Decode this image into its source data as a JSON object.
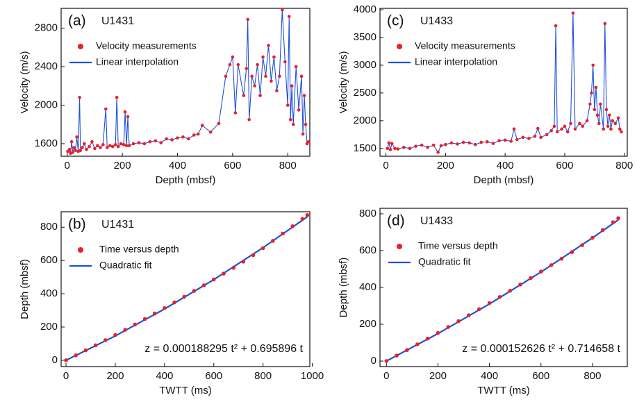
{
  "chart_data": [
    {
      "type": "scatter",
      "panel_label": "(a)",
      "title": "U1431",
      "x_label": "Depth (mbsf)",
      "y_label": "Velocity (m/s)",
      "xlim": [
        -22,
        880
      ],
      "ylim": [
        1470,
        3005
      ],
      "xticks": [
        0,
        200,
        400,
        600,
        800
      ],
      "yticks": [
        1600,
        2000,
        2400,
        2800
      ],
      "series": [
        {
          "name": "Velocity measurements",
          "color": "#e8202a",
          "x": [
            2,
            8,
            12,
            16,
            20,
            25,
            30,
            35,
            40,
            45,
            48,
            55,
            62,
            70,
            80,
            90,
            100,
            110,
            120,
            130,
            140,
            145,
            155,
            165,
            175,
            180,
            185,
            195,
            205,
            210,
            215,
            220,
            225,
            240,
            260,
            280,
            300,
            320,
            340,
            360,
            380,
            400,
            420,
            440,
            460,
            475,
            490,
            520,
            550,
            575,
            590,
            600,
            610,
            620,
            640,
            650,
            655,
            660,
            670,
            680,
            690,
            700,
            710,
            720,
            730,
            740,
            750,
            760,
            770,
            780,
            790,
            800,
            805,
            810,
            815,
            820,
            830,
            840,
            850,
            855,
            860,
            865,
            870,
            875
          ],
          "values": [
            1520,
            1540,
            1500,
            1620,
            1510,
            1560,
            1530,
            1670,
            1520,
            2080,
            1530,
            1560,
            1600,
            1540,
            1570,
            1620,
            1550,
            1580,
            1560,
            1590,
            1960,
            1560,
            1580,
            1570,
            1590,
            2080,
            1570,
            1600,
            1590,
            1930,
            1580,
            1880,
            1580,
            1600,
            1610,
            1600,
            1620,
            1630,
            1610,
            1650,
            1640,
            1660,
            1670,
            1650,
            1690,
            1700,
            1790,
            1720,
            1810,
            2300,
            2420,
            2500,
            1920,
            2420,
            2100,
            2380,
            2890,
            1850,
            2300,
            2200,
            2420,
            2100,
            2500,
            2300,
            2620,
            2250,
            2500,
            2150,
            2300,
            2990,
            2450,
            2000,
            2920,
            1850,
            2200,
            1800,
            2400,
            1950,
            2300,
            1700,
            2100,
            1800,
            1600,
            1620
          ]
        },
        {
          "name": "Linear interpolation",
          "color": "#1f4fd8"
        }
      ]
    },
    {
      "type": "scatter",
      "panel_label": "(b)",
      "title": "U1431",
      "x_label": "TWTT (ms)",
      "y_label": "Depth (mbsf)",
      "xlim": [
        -20,
        990
      ],
      "ylim": [
        -38,
        893
      ],
      "xticks": [
        0,
        200,
        400,
        600,
        800,
        1000
      ],
      "yticks": [
        0,
        200,
        400,
        600,
        800
      ],
      "equation": "z = 0.000188295 t² + 0.695896 t",
      "series": [
        {
          "name": "Time versus depth",
          "color": "#e8202a",
          "x": [
            0,
            40,
            80,
            120,
            160,
            200,
            240,
            280,
            320,
            360,
            400,
            440,
            480,
            520,
            560,
            600,
            640,
            680,
            720,
            760,
            800,
            840,
            880,
            920,
            960,
            980
          ],
          "values": [
            0,
            30,
            60,
            90,
            121,
            152,
            183,
            215,
            248,
            281,
            314,
            348,
            382,
            417,
            451,
            486,
            521,
            556,
            593,
            632,
            674,
            718,
            762,
            806,
            850,
            873
          ]
        },
        {
          "name": "Quadratic fit",
          "color": "#1f4fd8",
          "x": [
            0,
            200,
            400,
            600,
            800,
            980
          ],
          "values": [
            0,
            146.7,
            308.5,
            485.3,
            677.2,
            862.8
          ]
        }
      ]
    },
    {
      "type": "scatter",
      "panel_label": "(c)",
      "title": "U1433",
      "x_label": "Depth (mbsf)",
      "y_label": "Velocity (m/s)",
      "xlim": [
        -20,
        810
      ],
      "ylim": [
        1360,
        4025
      ],
      "xticks": [
        0,
        200,
        400,
        600,
        800
      ],
      "yticks": [
        1500,
        2000,
        2500,
        3000,
        3500,
        4000
      ],
      "series": [
        {
          "name": "Velocity measurements",
          "color": "#e8202a",
          "x": [
            5,
            10,
            15,
            20,
            30,
            40,
            60,
            80,
            100,
            120,
            140,
            160,
            175,
            185,
            200,
            220,
            240,
            260,
            280,
            300,
            320,
            340,
            360,
            380,
            400,
            420,
            430,
            440,
            460,
            480,
            500,
            510,
            520,
            540,
            555,
            565,
            570,
            575,
            590,
            600,
            610,
            620,
            628,
            635,
            650,
            660,
            675,
            685,
            690,
            695,
            700,
            705,
            710,
            715,
            720,
            730,
            735,
            740,
            745,
            750,
            755,
            760,
            770,
            780,
            785,
            790
          ],
          "values": [
            1500,
            1600,
            1480,
            1590,
            1500,
            1490,
            1520,
            1500,
            1540,
            1560,
            1520,
            1560,
            1430,
            1550,
            1570,
            1600,
            1580,
            1610,
            1600,
            1570,
            1610,
            1620,
            1590,
            1640,
            1650,
            1630,
            1850,
            1660,
            1700,
            1680,
            1720,
            1860,
            1700,
            1750,
            1820,
            1900,
            3710,
            1800,
            1850,
            1900,
            1800,
            1950,
            3940,
            1850,
            1950,
            1900,
            2000,
            2300,
            2500,
            3000,
            2200,
            2600,
            2100,
            1950,
            2300,
            1850,
            3750,
            2200,
            1900,
            2100,
            1850,
            2000,
            1950,
            2050,
            1850,
            1800
          ]
        },
        {
          "name": "Linear interpolation",
          "color": "#1f4fd8"
        }
      ]
    },
    {
      "type": "scatter",
      "panel_label": "(d)",
      "title": "U1433",
      "x_label": "TWTT (ms)",
      "y_label": "Depth (mbsf)",
      "xlim": [
        -25,
        935
      ],
      "ylim": [
        -30,
        830
      ],
      "xticks": [
        0,
        200,
        400,
        600,
        800
      ],
      "yticks": [
        0,
        200,
        400,
        600,
        800
      ],
      "equation": "z = 0.000152626 t² + 0.714658 t",
      "series": [
        {
          "name": "Time versus depth",
          "color": "#e8202a",
          "x": [
            0,
            40,
            80,
            120,
            160,
            200,
            240,
            280,
            320,
            360,
            400,
            440,
            480,
            520,
            560,
            600,
            640,
            680,
            720,
            760,
            800,
            840,
            880,
            900
          ],
          "values": [
            0,
            30,
            60,
            91,
            122,
            153,
            185,
            217,
            249,
            282,
            315,
            348,
            382,
            416,
            451,
            486,
            521,
            556,
            592,
            630,
            670,
            712,
            754,
            776
          ]
        },
        {
          "name": "Quadratic fit",
          "color": "#1f4fd8",
          "x": [
            0,
            200,
            400,
            600,
            800,
            900
          ],
          "values": [
            0,
            149.0,
            310.3,
            483.7,
            669.4,
            766.8
          ]
        }
      ]
    }
  ]
}
